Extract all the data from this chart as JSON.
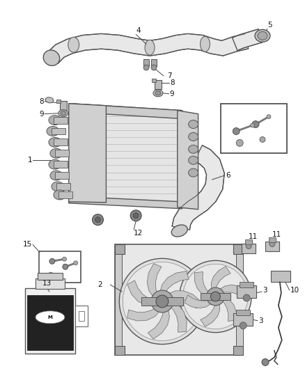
{
  "bg_color": "#ffffff",
  "fig_width": 4.38,
  "fig_height": 5.33,
  "dpi": 100,
  "line_color": "#333333",
  "part_fill": "#d8d8d8",
  "part_edge": "#444444",
  "dark_fill": "#888888",
  "label_fontsize": 7.5
}
